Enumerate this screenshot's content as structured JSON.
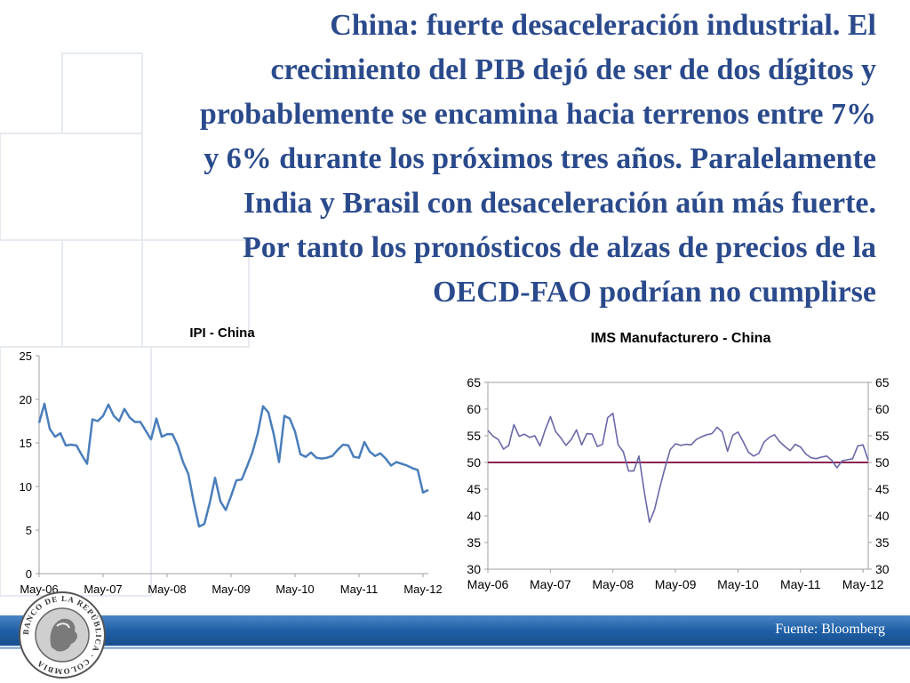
{
  "slide": {
    "title_lines": [
      "China: fuerte desaceleración industrial. El",
      "crecimiento del PIB dejó de ser de dos dígitos y",
      "probablemente se encamina hacia terrenos entre 7%",
      "y 6% durante los próximos tres años. Paralelamente",
      "India y Brasil con desaceleración aún más fuerte.",
      "Por tanto los pronósticos de alzas de precios de la",
      "OECD-FAO podrían no cumplirse"
    ],
    "source": "Fuente: Bloomberg",
    "logo_text": "BANCO DE LA REPÚBLICA · COLOMBIA"
  },
  "chart_data": [
    {
      "type": "line",
      "title": "IPI - China",
      "ylim": [
        0,
        25
      ],
      "yticks": [
        0,
        5,
        10,
        15,
        20,
        25
      ],
      "xticks": [
        "May-06",
        "May-07",
        "May-08",
        "May-09",
        "May-10",
        "May-11",
        "May-12"
      ],
      "x_start": "May-06",
      "series": [
        {
          "color": "#4a7ebb",
          "values": [
            17.3,
            19.5,
            16.6,
            15.7,
            16.1,
            14.7,
            14.8,
            14.7,
            13.6,
            12.6,
            17.7,
            17.5,
            18.1,
            19.4,
            18.1,
            17.5,
            18.9,
            17.9,
            17.4,
            17.4,
            16.4,
            15.4,
            17.8,
            15.7,
            16.0,
            16.0,
            14.7,
            12.8,
            11.4,
            8.2,
            5.4,
            5.7,
            8.1,
            11.0,
            8.3,
            7.3,
            8.9,
            10.7,
            10.8,
            12.3,
            13.9,
            16.1,
            19.2,
            18.5,
            16.0,
            12.8,
            18.1,
            17.8,
            16.3,
            13.7,
            13.4,
            13.9,
            13.3,
            13.2,
            13.3,
            13.5,
            14.2,
            14.8,
            14.7,
            13.4,
            13.3,
            15.1,
            14.0,
            13.5,
            13.8,
            13.2,
            12.4,
            12.8,
            12.6,
            12.4,
            12.1,
            11.9,
            9.3,
            9.6
          ]
        }
      ]
    },
    {
      "type": "line",
      "title": "IMS Manufacturero - China",
      "ylim": [
        30,
        65
      ],
      "yticks": [
        30,
        35,
        40,
        45,
        50,
        55,
        60,
        65
      ],
      "xticks": [
        "May-06",
        "May-07",
        "May-08",
        "May-09",
        "May-10",
        "May-11",
        "May-12"
      ],
      "x_start": "May-06",
      "reference_line": {
        "y": 50,
        "color": "#8b2252"
      },
      "series": [
        {
          "color": "#6a67a8",
          "values": [
            56.0,
            54.9,
            54.3,
            52.5,
            53.2,
            57.1,
            54.9,
            55.3,
            54.7,
            55.0,
            53.1,
            56.1,
            58.6,
            55.8,
            54.6,
            53.2,
            54.3,
            56.1,
            53.3,
            55.4,
            55.3,
            53.0,
            53.4,
            58.4,
            59.2,
            53.3,
            52.0,
            48.4,
            48.4,
            51.2,
            44.6,
            38.8,
            41.2,
            45.3,
            49.0,
            52.4,
            53.5,
            53.2,
            53.4,
            53.3,
            54.3,
            54.8,
            55.2,
            55.4,
            56.6,
            55.7,
            52.1,
            55.1,
            55.7,
            53.9,
            51.9,
            51.2,
            51.7,
            53.8,
            54.7,
            55.2,
            53.9,
            53.0,
            52.2,
            53.4,
            52.9,
            51.6,
            50.9,
            50.7,
            51.0,
            51.2,
            50.4,
            49.0,
            50.3,
            50.5,
            50.7,
            53.1,
            53.3,
            50.4
          ]
        }
      ]
    }
  ]
}
